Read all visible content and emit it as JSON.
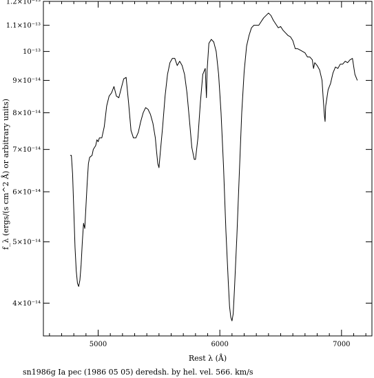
{
  "chart_data": {
    "type": "line",
    "xlabel": "Rest λ (Å)",
    "ylabel": "f_λ (ergs/(s cm^2 Å) or arbitrary units)",
    "caption": "sn1986g Ia pec (1986 05 05) deredsh. by hel. vel.   566. km/s",
    "x_scale": "linear",
    "y_scale": "log",
    "xlim": [
      4550,
      7250
    ],
    "ylim": [
      3.55e-14,
      1.2e-13
    ],
    "x_ticks": [
      {
        "value": 5000,
        "label": "5000"
      },
      {
        "value": 6000,
        "label": "6000"
      },
      {
        "value": 7000,
        "label": "7000"
      }
    ],
    "x_minor_step": 100,
    "y_ticks": [
      {
        "value": 4e-14,
        "label": "4×10⁻¹⁴"
      },
      {
        "value": 5e-14,
        "label": "5×10⁻¹⁴"
      },
      {
        "value": 6e-14,
        "label": "6×10⁻¹⁴"
      },
      {
        "value": 7e-14,
        "label": "7×10⁻¹⁴"
      },
      {
        "value": 8e-14,
        "label": "8×10⁻¹⁴"
      },
      {
        "value": 9e-14,
        "label": "9×10⁻¹⁴"
      },
      {
        "value": 1e-13,
        "label": "10⁻¹³"
      },
      {
        "value": 1.1e-13,
        "label": "1.1×10⁻¹³"
      },
      {
        "value": 1.2e-13,
        "label": "1.2×10⁻¹³"
      }
    ],
    "series": [
      {
        "color": "#000000",
        "points": [
          [
            4770,
            6.85e-14
          ],
          [
            4780,
            6.85e-14
          ],
          [
            4790,
            6.4e-14
          ],
          [
            4800,
            5.6e-14
          ],
          [
            4810,
            4.9e-14
          ],
          [
            4820,
            4.5e-14
          ],
          [
            4830,
            4.3e-14
          ],
          [
            4840,
            4.25e-14
          ],
          [
            4850,
            4.35e-14
          ],
          [
            4860,
            4.6e-14
          ],
          [
            4870,
            5e-14
          ],
          [
            4880,
            5.35e-14
          ],
          [
            4890,
            5.25e-14
          ],
          [
            4900,
            5.7e-14
          ],
          [
            4910,
            6.2e-14
          ],
          [
            4920,
            6.65e-14
          ],
          [
            4930,
            6.8e-14
          ],
          [
            4950,
            6.85e-14
          ],
          [
            4960,
            7e-14
          ],
          [
            4980,
            7.1e-14
          ],
          [
            4990,
            7.25e-14
          ],
          [
            5000,
            7.2e-14
          ],
          [
            5010,
            7.3e-14
          ],
          [
            5030,
            7.3e-14
          ],
          [
            5050,
            7.6e-14
          ],
          [
            5070,
            8.2e-14
          ],
          [
            5090,
            8.5e-14
          ],
          [
            5110,
            8.6e-14
          ],
          [
            5130,
            8.8e-14
          ],
          [
            5150,
            8.5e-14
          ],
          [
            5170,
            8.45e-14
          ],
          [
            5190,
            8.75e-14
          ],
          [
            5210,
            9.05e-14
          ],
          [
            5230,
            9.1e-14
          ],
          [
            5250,
            8.3e-14
          ],
          [
            5270,
            7.5e-14
          ],
          [
            5290,
            7.3e-14
          ],
          [
            5310,
            7.3e-14
          ],
          [
            5330,
            7.45e-14
          ],
          [
            5350,
            7.75e-14
          ],
          [
            5370,
            8e-14
          ],
          [
            5390,
            8.15e-14
          ],
          [
            5410,
            8.1e-14
          ],
          [
            5430,
            7.95e-14
          ],
          [
            5450,
            7.7e-14
          ],
          [
            5470,
            7.3e-14
          ],
          [
            5480,
            6.95e-14
          ],
          [
            5490,
            6.65e-14
          ],
          [
            5500,
            6.55e-14
          ],
          [
            5510,
            6.9e-14
          ],
          [
            5530,
            7.6e-14
          ],
          [
            5550,
            8.5e-14
          ],
          [
            5570,
            9.2e-14
          ],
          [
            5590,
            9.6e-14
          ],
          [
            5610,
            9.75e-14
          ],
          [
            5630,
            9.75e-14
          ],
          [
            5650,
            9.5e-14
          ],
          [
            5670,
            9.65e-14
          ],
          [
            5690,
            9.5e-14
          ],
          [
            5710,
            9.2e-14
          ],
          [
            5730,
            8.6e-14
          ],
          [
            5750,
            7.8e-14
          ],
          [
            5770,
            7.05e-14
          ],
          [
            5790,
            6.75e-14
          ],
          [
            5800,
            6.75e-14
          ],
          [
            5820,
            7.3e-14
          ],
          [
            5840,
            8.3e-14
          ],
          [
            5860,
            9.2e-14
          ],
          [
            5880,
            9.4e-14
          ],
          [
            5890,
            8.45e-14
          ],
          [
            5895,
            9.3e-14
          ],
          [
            5910,
            1.03e-13
          ],
          [
            5930,
            1.045e-13
          ],
          [
            5950,
            1.035e-13
          ],
          [
            5970,
            1e-13
          ],
          [
            5990,
            9.2e-14
          ],
          [
            6010,
            8e-14
          ],
          [
            6030,
            6.6e-14
          ],
          [
            6050,
            5.2e-14
          ],
          [
            6070,
            4.3e-14
          ],
          [
            6080,
            3.95e-14
          ],
          [
            6090,
            3.8e-14
          ],
          [
            6100,
            3.75e-14
          ],
          [
            6110,
            3.85e-14
          ],
          [
            6120,
            4.2e-14
          ],
          [
            6140,
            5.1e-14
          ],
          [
            6160,
            6.4e-14
          ],
          [
            6180,
            8e-14
          ],
          [
            6200,
            9.3e-14
          ],
          [
            6220,
            1.02e-13
          ],
          [
            6240,
            1.06e-13
          ],
          [
            6260,
            1.09e-13
          ],
          [
            6280,
            1.1e-13
          ],
          [
            6300,
            1.1e-13
          ],
          [
            6320,
            1.1e-13
          ],
          [
            6340,
            1.115e-13
          ],
          [
            6360,
            1.13e-13
          ],
          [
            6380,
            1.14e-13
          ],
          [
            6390,
            1.145e-13
          ],
          [
            6400,
            1.15e-13
          ],
          [
            6420,
            1.14e-13
          ],
          [
            6440,
            1.12e-13
          ],
          [
            6460,
            1.105e-13
          ],
          [
            6480,
            1.09e-13
          ],
          [
            6500,
            1.095e-13
          ],
          [
            6520,
            1.08e-13
          ],
          [
            6540,
            1.07e-13
          ],
          [
            6560,
            1.06e-13
          ],
          [
            6580,
            1.055e-13
          ],
          [
            6600,
            1.04e-13
          ],
          [
            6620,
            1.01e-13
          ],
          [
            6640,
            1.01e-13
          ],
          [
            6660,
            1.005e-13
          ],
          [
            6680,
            1e-13
          ],
          [
            6700,
            9.95e-14
          ],
          [
            6720,
            9.8e-14
          ],
          [
            6740,
            9.8e-14
          ],
          [
            6760,
            9.7e-14
          ],
          [
            6770,
            9.4e-14
          ],
          [
            6780,
            9.6e-14
          ],
          [
            6800,
            9.5e-14
          ],
          [
            6820,
            9.35e-14
          ],
          [
            6840,
            9e-14
          ],
          [
            6850,
            8.4e-14
          ],
          [
            6860,
            7.9e-14
          ],
          [
            6865,
            7.75e-14
          ],
          [
            6870,
            8.2e-14
          ],
          [
            6890,
            8.7e-14
          ],
          [
            6910,
            8.9e-14
          ],
          [
            6930,
            9.25e-14
          ],
          [
            6950,
            9.45e-14
          ],
          [
            6970,
            9.4e-14
          ],
          [
            6990,
            9.55e-14
          ],
          [
            7010,
            9.55e-14
          ],
          [
            7030,
            9.65e-14
          ],
          [
            7050,
            9.6e-14
          ],
          [
            7070,
            9.7e-14
          ],
          [
            7090,
            9.75e-14
          ],
          [
            7110,
            9.2e-14
          ],
          [
            7130,
            9e-14
          ]
        ]
      }
    ]
  }
}
